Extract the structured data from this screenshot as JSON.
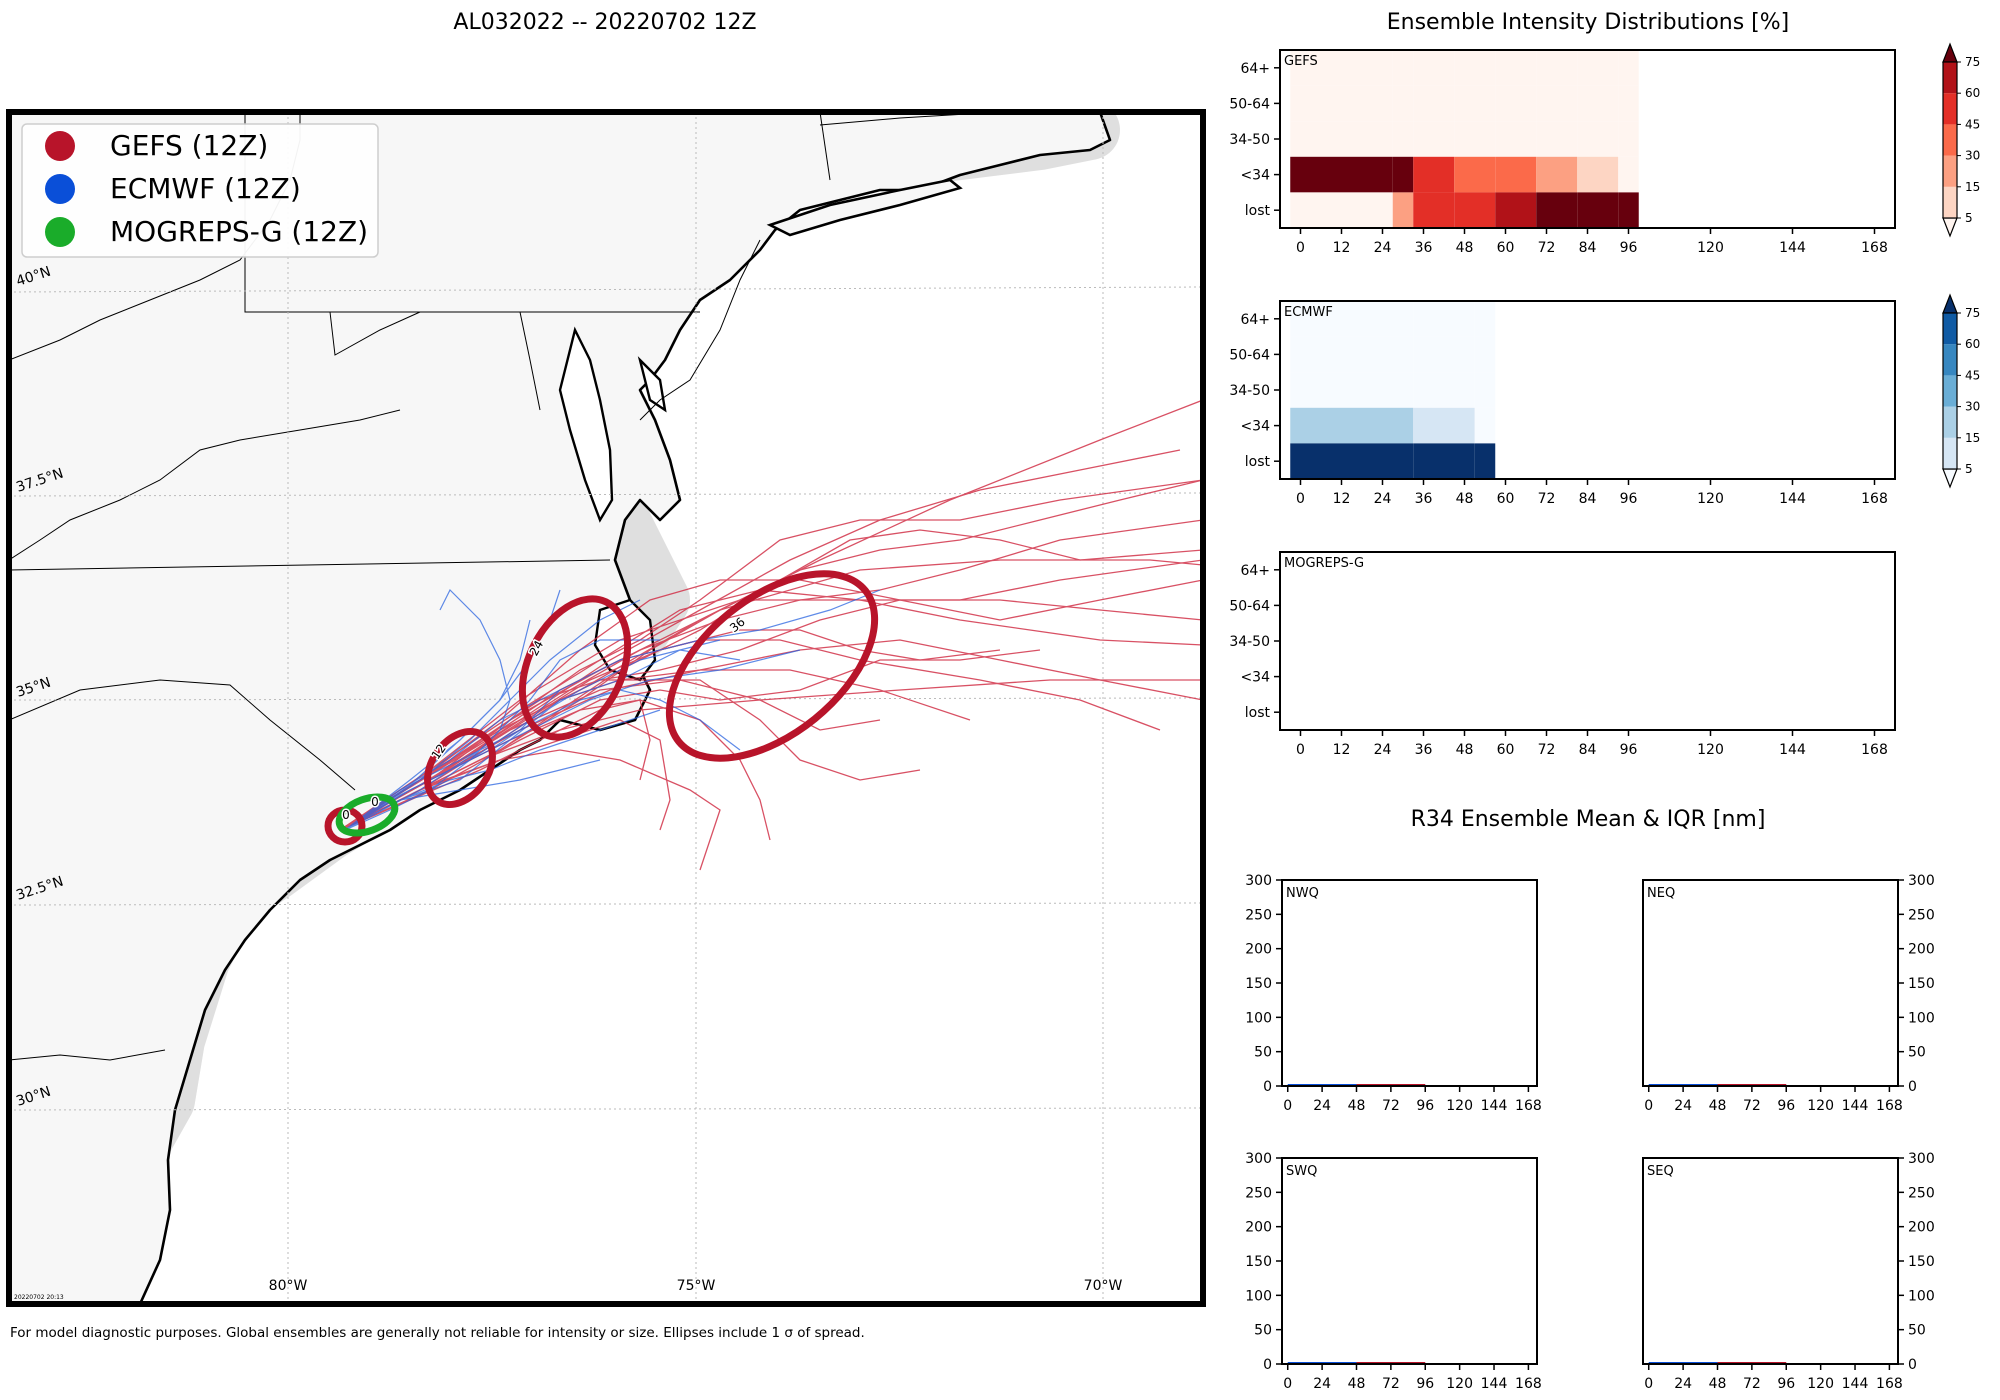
{
  "main_title": "AL032022 -- 20220702 12Z",
  "intensity_title": "Ensemble Intensity Distributions [%]",
  "r34_title": "R34 Ensemble Mean & IQR [nm]",
  "footnote": "For model diagnostic purposes. Global ensembles are generally not reliable for intensity or size. Ellipses include 1 σ of spread.",
  "map_stamp": "20220702 20:13",
  "colors": {
    "gefs": "#b8142a",
    "ecmwf": "#0a4fd8",
    "mogreps": "#1aac2a",
    "land": "#f7f7f7",
    "coast_halo": "#d3d3d3"
  },
  "legend": [
    {
      "label": "GEFS (12Z)",
      "color_key": "gefs"
    },
    {
      "label": "ECMWF (12Z)",
      "color_key": "ecmwf"
    },
    {
      "label": "MOGREPS-G (12Z)",
      "color_key": "mogreps"
    }
  ],
  "map_labels": {
    "lat": [
      "40°N",
      "37.5°N",
      "35°N",
      "32.5°N",
      "30°N"
    ],
    "lon": [
      "80°W",
      "75°W",
      "70°W"
    ]
  },
  "ellipse_labels": [
    {
      "model": "GEFS",
      "hour": "0"
    },
    {
      "model": "MOGREPS-G",
      "hour": "0"
    },
    {
      "model": "GEFS",
      "hour": "12"
    },
    {
      "model": "GEFS",
      "hour": "24"
    },
    {
      "model": "GEFS",
      "hour": "36"
    }
  ],
  "chart_data": [
    {
      "type": "heatmap",
      "panel": "GEFS",
      "title": "Ensemble Intensity Distributions [%]",
      "y_categories": [
        "lost",
        "<34",
        "34-50",
        "50-64",
        "64+"
      ],
      "x_ticks": [
        0,
        12,
        24,
        36,
        48,
        60,
        72,
        84,
        96,
        120,
        144,
        168
      ],
      "xlim": [
        -6,
        174
      ],
      "cells": [
        {
          "x0": -3,
          "x1": 27,
          "row": "64+",
          "value": 2
        },
        {
          "x0": -3,
          "x1": 27,
          "row": "50-64",
          "value": 2
        },
        {
          "x0": -3,
          "x1": 27,
          "row": "34-50",
          "value": 2
        },
        {
          "x0": -3,
          "x1": 27,
          "row": "<34",
          "value": 85
        },
        {
          "x0": -3,
          "x1": 27,
          "row": "lost",
          "value": 3
        },
        {
          "x0": 27,
          "x1": 33,
          "row": "64+",
          "value": 2
        },
        {
          "x0": 27,
          "x1": 33,
          "row": "50-64",
          "value": 2
        },
        {
          "x0": 27,
          "x1": 33,
          "row": "34-50",
          "value": 2
        },
        {
          "x0": 27,
          "x1": 33,
          "row": "<34",
          "value": 85
        },
        {
          "x0": 27,
          "x1": 33,
          "row": "lost",
          "value": 16
        },
        {
          "x0": 33,
          "x1": 45,
          "row": "64+",
          "value": 2
        },
        {
          "x0": 33,
          "x1": 45,
          "row": "50-64",
          "value": 2
        },
        {
          "x0": 33,
          "x1": 45,
          "row": "34-50",
          "value": 2
        },
        {
          "x0": 33,
          "x1": 45,
          "row": "<34",
          "value": 52
        },
        {
          "x0": 33,
          "x1": 45,
          "row": "lost",
          "value": 52
        },
        {
          "x0": 45,
          "x1": 57,
          "row": "64+",
          "value": 2
        },
        {
          "x0": 45,
          "x1": 57,
          "row": "50-64",
          "value": 2
        },
        {
          "x0": 45,
          "x1": 57,
          "row": "34-50",
          "value": 2
        },
        {
          "x0": 45,
          "x1": 57,
          "row": "<34",
          "value": 40
        },
        {
          "x0": 45,
          "x1": 57,
          "row": "lost",
          "value": 52
        },
        {
          "x0": 57,
          "x1": 69,
          "row": "64+",
          "value": 2
        },
        {
          "x0": 57,
          "x1": 69,
          "row": "50-64",
          "value": 2
        },
        {
          "x0": 57,
          "x1": 69,
          "row": "34-50",
          "value": 2
        },
        {
          "x0": 57,
          "x1": 69,
          "row": "<34",
          "value": 40
        },
        {
          "x0": 57,
          "x1": 69,
          "row": "lost",
          "value": 62
        },
        {
          "x0": 69,
          "x1": 81,
          "row": "64+",
          "value": 2
        },
        {
          "x0": 69,
          "x1": 81,
          "row": "50-64",
          "value": 2
        },
        {
          "x0": 69,
          "x1": 81,
          "row": "34-50",
          "value": 2
        },
        {
          "x0": 69,
          "x1": 81,
          "row": "<34",
          "value": 25
        },
        {
          "x0": 69,
          "x1": 81,
          "row": "lost",
          "value": 85
        },
        {
          "x0": 81,
          "x1": 93,
          "row": "64+",
          "value": 2
        },
        {
          "x0": 81,
          "x1": 93,
          "row": "50-64",
          "value": 2
        },
        {
          "x0": 81,
          "x1": 93,
          "row": "34-50",
          "value": 2
        },
        {
          "x0": 81,
          "x1": 93,
          "row": "<34",
          "value": 12
        },
        {
          "x0": 81,
          "x1": 93,
          "row": "lost",
          "value": 85
        },
        {
          "x0": 93,
          "x1": 99,
          "row": "64+",
          "value": 2
        },
        {
          "x0": 93,
          "x1": 99,
          "row": "50-64",
          "value": 2
        },
        {
          "x0": 93,
          "x1": 99,
          "row": "34-50",
          "value": 2
        },
        {
          "x0": 93,
          "x1": 99,
          "row": "<34",
          "value": 2
        },
        {
          "x0": 93,
          "x1": 99,
          "row": "lost",
          "value": 85
        }
      ],
      "colorbar": {
        "ticks": [
          5,
          15,
          30,
          45,
          60,
          75
        ],
        "colors": [
          "#fff5f0",
          "#fdd5c3",
          "#fca082",
          "#fb6a4a",
          "#e32f27",
          "#b11218",
          "#67000d"
        ]
      }
    },
    {
      "type": "heatmap",
      "panel": "ECMWF",
      "y_categories": [
        "lost",
        "<34",
        "34-50",
        "50-64",
        "64+"
      ],
      "x_ticks": [
        0,
        12,
        24,
        36,
        48,
        60,
        72,
        84,
        96,
        120,
        144,
        168
      ],
      "xlim": [
        -6,
        174
      ],
      "cells": [
        {
          "x0": -3,
          "x1": 33,
          "row": "64+",
          "value": 2
        },
        {
          "x0": -3,
          "x1": 33,
          "row": "50-64",
          "value": 2
        },
        {
          "x0": -3,
          "x1": 33,
          "row": "34-50",
          "value": 2
        },
        {
          "x0": -3,
          "x1": 33,
          "row": "<34",
          "value": 25
        },
        {
          "x0": -3,
          "x1": 33,
          "row": "lost",
          "value": 85
        },
        {
          "x0": 33,
          "x1": 51,
          "row": "64+",
          "value": 2
        },
        {
          "x0": 33,
          "x1": 51,
          "row": "50-64",
          "value": 2
        },
        {
          "x0": 33,
          "x1": 51,
          "row": "34-50",
          "value": 2
        },
        {
          "x0": 33,
          "x1": 51,
          "row": "<34",
          "value": 12
        },
        {
          "x0": 33,
          "x1": 51,
          "row": "lost",
          "value": 85
        },
        {
          "x0": 51,
          "x1": 57,
          "row": "64+",
          "value": 2
        },
        {
          "x0": 51,
          "x1": 57,
          "row": "50-64",
          "value": 2
        },
        {
          "x0": 51,
          "x1": 57,
          "row": "34-50",
          "value": 2
        },
        {
          "x0": 51,
          "x1": 57,
          "row": "<34",
          "value": 2
        },
        {
          "x0": 51,
          "x1": 57,
          "row": "lost",
          "value": 85
        }
      ],
      "colorbar": {
        "ticks": [
          5,
          15,
          30,
          45,
          60,
          75
        ],
        "colors": [
          "#f7fbff",
          "#d6e6f4",
          "#abd0e6",
          "#6aaed6",
          "#3787c0",
          "#105ba4",
          "#08306b"
        ]
      }
    },
    {
      "type": "heatmap",
      "panel": "MOGREPS-G",
      "y_categories": [
        "lost",
        "<34",
        "34-50",
        "50-64",
        "64+"
      ],
      "x_ticks": [
        0,
        12,
        24,
        36,
        48,
        60,
        72,
        84,
        96,
        120,
        144,
        168
      ],
      "xlim": [
        -6,
        174
      ],
      "cells": []
    },
    {
      "type": "line",
      "panel": "NWQ",
      "title": "R34 Ensemble Mean & IQR [nm]",
      "x_ticks": [
        0,
        24,
        48,
        72,
        96,
        120,
        144,
        168
      ],
      "y_ticks": [
        0,
        50,
        100,
        150,
        200,
        250,
        300
      ],
      "ylim": [
        0,
        300
      ],
      "y_axis_side": "left",
      "series": [
        {
          "name": "ECMWF",
          "x": [
            0,
            48
          ],
          "values": [
            0,
            0
          ]
        },
        {
          "name": "GEFS",
          "x": [
            48,
            96
          ],
          "values": [
            0,
            0
          ]
        }
      ]
    },
    {
      "type": "line",
      "panel": "NEQ",
      "x_ticks": [
        0,
        24,
        48,
        72,
        96,
        120,
        144,
        168
      ],
      "y_ticks": [
        0,
        50,
        100,
        150,
        200,
        250,
        300
      ],
      "ylim": [
        0,
        300
      ],
      "y_axis_side": "right",
      "series": [
        {
          "name": "ECMWF",
          "x": [
            0,
            48
          ],
          "values": [
            0,
            0
          ]
        },
        {
          "name": "GEFS",
          "x": [
            48,
            96
          ],
          "values": [
            0,
            0
          ]
        }
      ]
    },
    {
      "type": "line",
      "panel": "SWQ",
      "x_ticks": [
        0,
        24,
        48,
        72,
        96,
        120,
        144,
        168
      ],
      "y_ticks": [
        0,
        50,
        100,
        150,
        200,
        250,
        300
      ],
      "ylim": [
        0,
        300
      ],
      "y_axis_side": "left",
      "series": [
        {
          "name": "ECMWF",
          "x": [
            0,
            48
          ],
          "values": [
            0,
            0
          ]
        },
        {
          "name": "GEFS",
          "x": [
            48,
            96
          ],
          "values": [
            0,
            0
          ]
        }
      ]
    },
    {
      "type": "line",
      "panel": "SEQ",
      "x_ticks": [
        0,
        24,
        48,
        72,
        96,
        120,
        144,
        168
      ],
      "y_ticks": [
        0,
        50,
        100,
        150,
        200,
        250,
        300
      ],
      "ylim": [
        0,
        300
      ],
      "y_axis_side": "right",
      "series": [
        {
          "name": "ECMWF",
          "x": [
            0,
            48
          ],
          "values": [
            0,
            0
          ]
        },
        {
          "name": "GEFS",
          "x": [
            48,
            96
          ],
          "values": [
            0,
            0
          ]
        }
      ]
    }
  ]
}
